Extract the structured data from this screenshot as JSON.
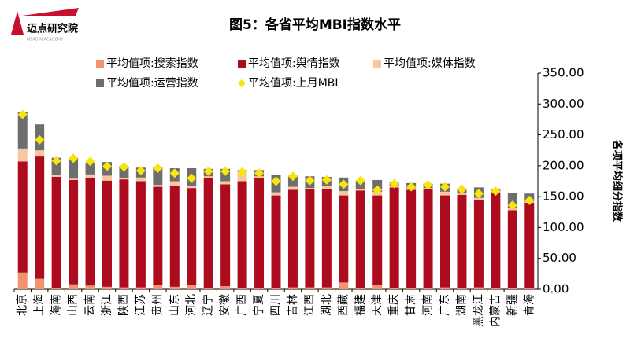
{
  "logo": {
    "name": "迈点研究院",
    "subtitle": "MEADIN ACADEMY"
  },
  "chart_data": {
    "type": "bar",
    "stacked": true,
    "title": "图5：各省平均MBI指数水平",
    "ylabel": "各项平均细分指数",
    "categories": [
      "北京",
      "上海",
      "海南",
      "山西",
      "云南",
      "浙江",
      "陕西",
      "江苏",
      "贵州",
      "山东",
      "河北",
      "辽宁",
      "安徽",
      "广西",
      "宁夏",
      "四川",
      "吉林",
      "江西",
      "湖北",
      "西藏",
      "福建",
      "天津",
      "重庆",
      "甘肃",
      "河南",
      "广东",
      "湖南",
      "黑龙江",
      "内蒙古",
      "新疆",
      "青海"
    ],
    "series": [
      {
        "name": "平均值项:搜索指数",
        "type": "bar",
        "color": "#f39271",
        "values": [
          27,
          17,
          2,
          8,
          6,
          4,
          3,
          3,
          7,
          4,
          7,
          2,
          5,
          2,
          2,
          2,
          3,
          3,
          3,
          11,
          2,
          7,
          2,
          2,
          2,
          3,
          2,
          3,
          2,
          2,
          2
        ]
      },
      {
        "name": "平均值项:舆情指数",
        "type": "bar",
        "color": "#ad0b1e",
        "values": [
          180,
          198,
          180,
          169,
          175,
          172,
          175,
          172,
          159,
          164,
          157,
          178,
          165,
          173,
          178,
          150,
          158,
          159,
          160,
          141,
          158,
          145,
          163,
          159,
          160,
          149,
          151,
          142,
          154,
          126,
          138
        ]
      },
      {
        "name": "平均值项:媒体指数",
        "type": "bar",
        "color": "#f8c7a1",
        "values": [
          21,
          10,
          3,
          2,
          5,
          8,
          2,
          6,
          3,
          7,
          4,
          3,
          5,
          15,
          3,
          5,
          5,
          2,
          4,
          7,
          2,
          6,
          2,
          3,
          2,
          6,
          2,
          3,
          1,
          3,
          2
        ]
      },
      {
        "name": "平均值项:运营指数",
        "type": "bar",
        "color": "#6e6e6e",
        "values": [
          59,
          42,
          28,
          34,
          19,
          22,
          19,
          16,
          29,
          21,
          28,
          12,
          20,
          3,
          10,
          28,
          18,
          19,
          15,
          22,
          14,
          19,
          6,
          8,
          7,
          13,
          8,
          17,
          5,
          25,
          13
        ]
      },
      {
        "name": "平均值项:上月MBI",
        "type": "scatter",
        "color": "#f7e50b",
        "values": [
          283,
          242,
          208,
          212,
          207,
          199,
          198,
          192,
          196,
          188,
          180,
          191,
          191,
          190,
          188,
          175,
          183,
          176,
          177,
          170,
          176,
          161,
          171,
          166,
          169,
          166,
          162,
          155,
          159,
          136,
          144
        ]
      }
    ],
    "ylim": [
      0,
      350
    ],
    "yticks": [
      {
        "value": 0,
        "label": "0.00"
      },
      {
        "value": 50,
        "label": "50.00"
      },
      {
        "value": 100,
        "label": "100.00"
      },
      {
        "value": 150,
        "label": "150.00"
      },
      {
        "value": 200,
        "label": "200.00"
      },
      {
        "value": 250,
        "label": "250.00"
      },
      {
        "value": 300,
        "label": "300.00"
      },
      {
        "value": 350,
        "label": "350.00"
      }
    ],
    "grid": false
  }
}
